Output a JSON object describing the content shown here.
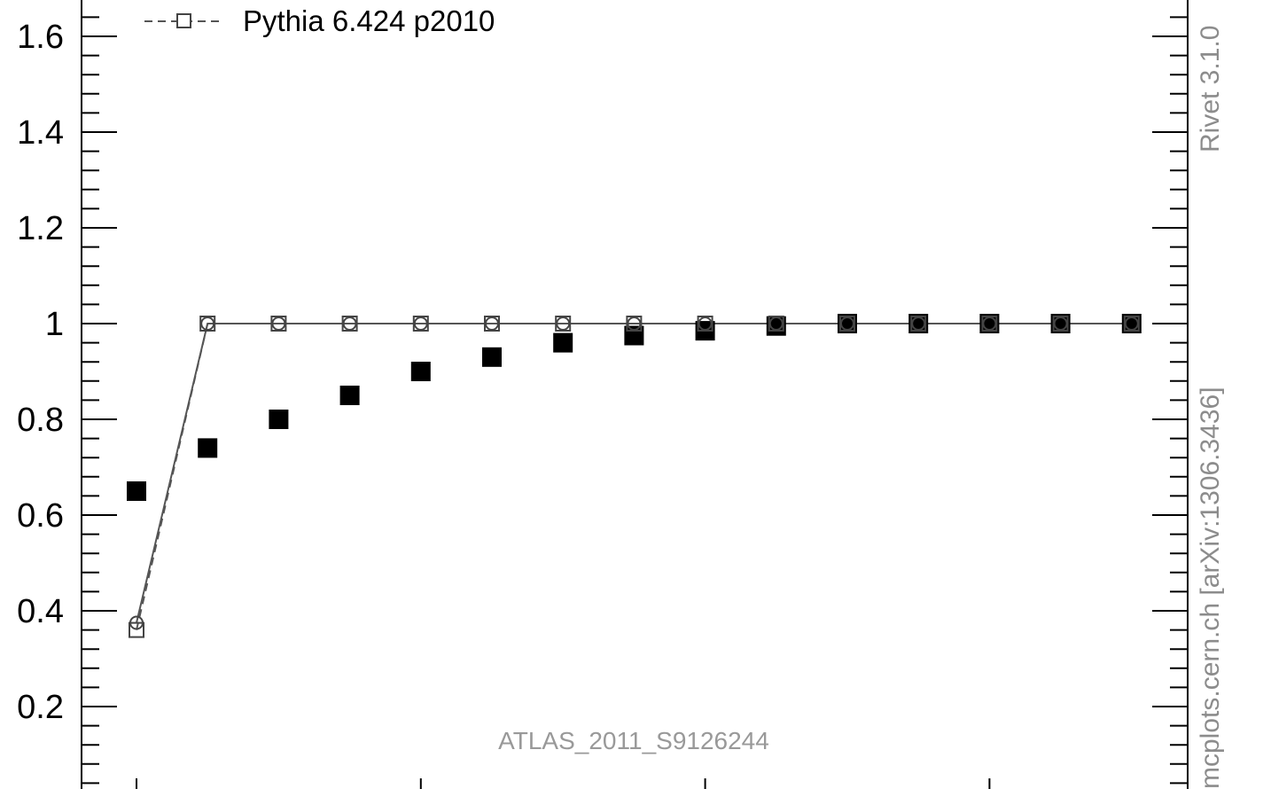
{
  "chart_data": {
    "type": "scatter",
    "x": [
      0,
      1,
      2,
      3,
      4,
      5,
      6,
      7,
      8,
      9,
      10,
      11,
      12,
      13,
      14
    ],
    "ylim": [
      0.0,
      1.66
    ],
    "yticks": [
      {
        "value": 0.2,
        "label": "0.2"
      },
      {
        "value": 0.4,
        "label": "0.4"
      },
      {
        "value": 0.6,
        "label": "0.6"
      },
      {
        "value": 0.8,
        "label": "0.8"
      },
      {
        "value": 1.0,
        "label": "1"
      },
      {
        "value": 1.2,
        "label": "1.2"
      },
      {
        "value": 1.4,
        "label": "1.4"
      },
      {
        "value": 1.6,
        "label": "1.6"
      }
    ],
    "grid": false,
    "legend": {
      "position": "top-left",
      "entries": [
        "Pythia 6.424 p2010"
      ]
    },
    "series": [
      {
        "marker": "filled-square",
        "values": [
          0.65,
          0.74,
          0.8,
          0.85,
          0.9,
          0.93,
          0.96,
          0.975,
          0.985,
          0.995,
          1.0,
          1.0,
          1.0,
          1.0,
          1.0
        ]
      },
      {
        "name": "Pythia 6.424 p2010",
        "marker": "open-square",
        "line": "dashed",
        "values": [
          0.36,
          1.0,
          1.0,
          1.0,
          1.0,
          1.0,
          1.0,
          1.0,
          1.0,
          1.0,
          1.0,
          1.0,
          1.0,
          1.0,
          1.0
        ]
      },
      {
        "marker": "open-circle",
        "line": "solid",
        "values": [
          0.375,
          1.0,
          1.0,
          1.0,
          1.0,
          1.0,
          1.0,
          1.0,
          1.0,
          1.0,
          1.0,
          1.0,
          1.0,
          1.0,
          1.0
        ]
      }
    ],
    "annotations": {
      "analysis": "ATLAS_2011_S9126244",
      "rivet": "Rivet 3.1.0",
      "source": "mcplots.cern.ch [arXiv:1306.3436]"
    }
  },
  "colors": {
    "data": "#000000",
    "mc_line": "#555555",
    "mc_marker": "#444444",
    "annotation": "#999999"
  }
}
